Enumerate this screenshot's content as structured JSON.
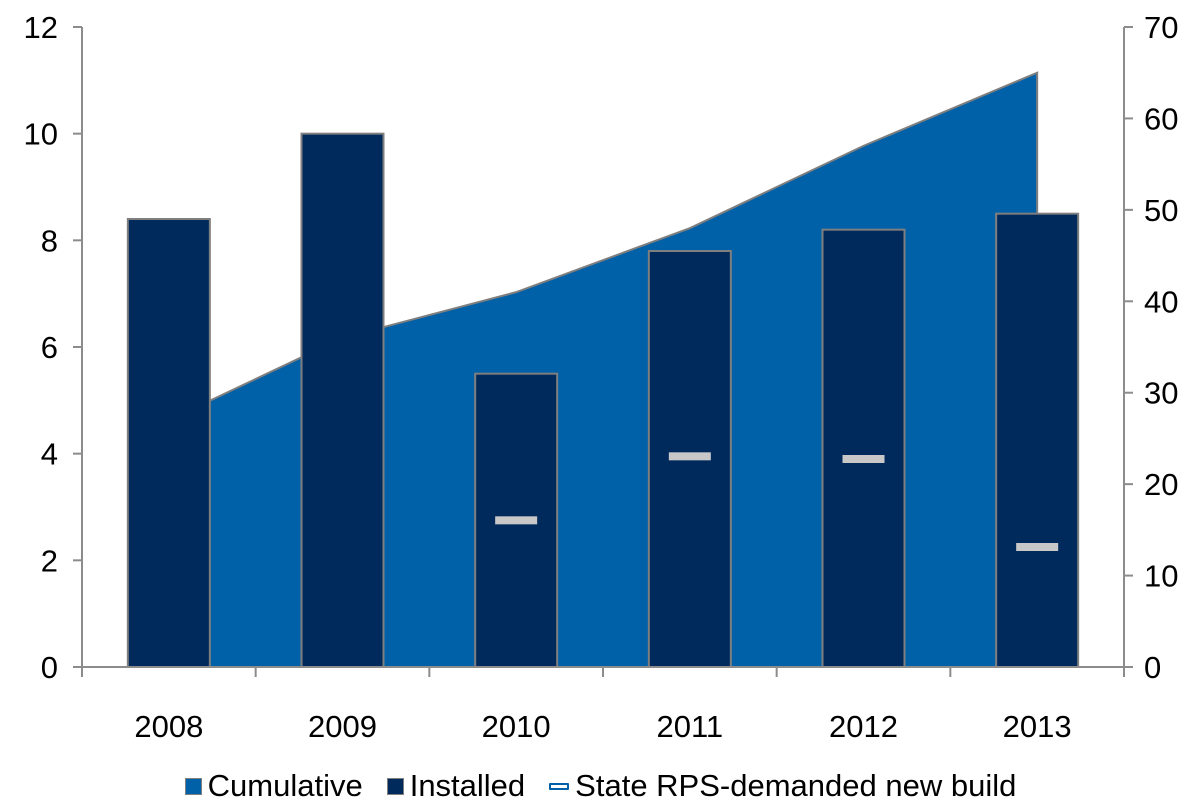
{
  "chart_data": {
    "type": "bar",
    "categories": [
      "2008",
      "2009",
      "2010",
      "2011",
      "2012",
      "2013"
    ],
    "y_left": {
      "ylim": [
        0,
        12
      ],
      "ticks": [
        "0",
        "2",
        "4",
        "6",
        "8",
        "10",
        "12"
      ]
    },
    "y_right": {
      "ylim": [
        0,
        70
      ],
      "ticks": [
        "0",
        "10",
        "20",
        "30",
        "40",
        "50",
        "60",
        "70"
      ]
    },
    "series": [
      {
        "name": "Cumulative",
        "kind": "area",
        "axis": "right",
        "color": "#0060a8",
        "values": [
          27,
          36,
          41,
          48,
          57,
          65
        ]
      },
      {
        "name": "Installed",
        "kind": "bar",
        "axis": "left",
        "color": "#002a5c",
        "values": [
          8.4,
          10.0,
          5.5,
          7.8,
          8.2,
          8.5
        ]
      },
      {
        "name": "State RPS-demanded new build",
        "kind": "marker",
        "axis": "left",
        "color": "#c8c8c8",
        "values": [
          null,
          null,
          2.75,
          3.95,
          3.9,
          2.25
        ]
      }
    ],
    "legend": {
      "position": "bottom"
    },
    "grid": false
  },
  "legend_items": [
    {
      "label": "Cumulative",
      "color": "#0060a8"
    },
    {
      "label": "Installed",
      "color": "#002a5c"
    },
    {
      "label": "State RPS-demanded new build",
      "color": "#0060a8"
    }
  ]
}
